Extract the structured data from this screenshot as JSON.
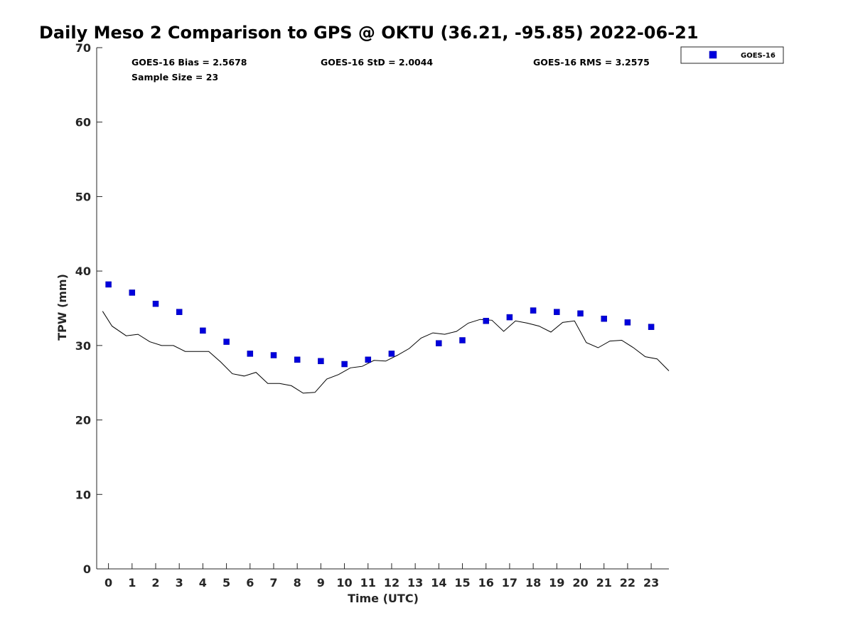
{
  "chart_data": {
    "type": "scatter",
    "title": "Daily Meso 2 Comparison to GPS @ OKTU (36.21, -95.85) 2022-06-21",
    "xlabel": "Time (UTC)",
    "ylabel": "TPW (mm)",
    "xlim": [
      -0.5,
      23.75
    ],
    "ylim": [
      0,
      70
    ],
    "x_ticks": [
      0,
      1,
      2,
      3,
      4,
      5,
      6,
      7,
      8,
      9,
      10,
      11,
      12,
      13,
      14,
      15,
      16,
      17,
      18,
      19,
      20,
      21,
      22,
      23
    ],
    "y_ticks": [
      0,
      10,
      20,
      30,
      40,
      50,
      60,
      70
    ],
    "grid": false,
    "legend": {
      "position": "outside-top-right",
      "entries": [
        "GOES-16"
      ]
    },
    "stats": {
      "bias": "GOES-16 Bias = 2.5678",
      "std": "GOES-16 StD = 2.0044",
      "rms": "GOES-16 RMS = 3.2575",
      "sample": "Sample Size = 23"
    },
    "series": [
      {
        "name": "GOES-16",
        "marker": "square",
        "color": "#0000dd",
        "x": [
          0,
          1,
          2,
          3,
          4,
          5,
          6,
          7,
          8,
          9,
          10,
          11,
          12,
          14,
          15,
          16,
          17,
          18,
          19,
          20,
          21,
          22,
          23
        ],
        "y": [
          38.2,
          37.1,
          35.6,
          34.5,
          32.0,
          30.5,
          28.9,
          28.7,
          28.1,
          27.9,
          27.5,
          28.1,
          28.9,
          30.3,
          30.7,
          33.3,
          33.8,
          34.7,
          34.5,
          34.3,
          33.6,
          33.1,
          32.5
        ]
      },
      {
        "marker": "line",
        "color": "#000000",
        "x": [
          -0.25,
          0.15,
          0.75,
          1.25,
          1.75,
          2.25,
          2.75,
          3.25,
          3.75,
          4.25,
          4.75,
          5.25,
          5.75,
          6.25,
          6.75,
          7.25,
          7.75,
          8.25,
          8.75,
          9.25,
          9.75,
          10.25,
          10.75,
          11.25,
          11.75,
          12.25,
          12.75,
          13.25,
          13.75,
          14.25,
          14.75,
          15.25,
          15.75,
          16.25,
          16.75,
          17.25,
          17.75,
          18.25,
          18.75,
          19.25,
          19.75,
          20.25,
          20.75,
          21.25,
          21.75,
          22.25,
          22.75,
          23.25,
          23.75
        ],
        "y": [
          34.6,
          32.6,
          31.3,
          31.5,
          30.5,
          30.0,
          30.0,
          29.2,
          29.2,
          29.2,
          27.8,
          26.2,
          25.9,
          26.4,
          24.9,
          24.9,
          24.6,
          23.6,
          23.7,
          25.5,
          26.1,
          27.0,
          27.2,
          28.0,
          27.9,
          28.7,
          29.6,
          31.0,
          31.7,
          31.5,
          31.9,
          33.0,
          33.5,
          33.4,
          31.9,
          33.3,
          33.0,
          32.6,
          31.8,
          33.1,
          33.3,
          30.4,
          29.7,
          30.6,
          30.7,
          29.7,
          28.5,
          28.2,
          26.6
        ]
      }
    ]
  }
}
